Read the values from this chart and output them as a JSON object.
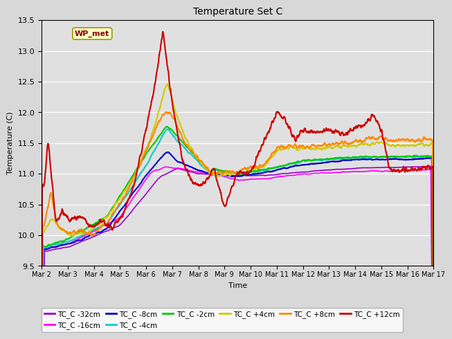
{
  "title": "Temperature Set C",
  "ylabel": "Temperature (C)",
  "xlabel": "Time",
  "ylim": [
    9.5,
    13.5
  ],
  "fig_bg_color": "#d8d8d8",
  "plot_bg_color": "#e0e0e0",
  "annotation_text": "WP_met",
  "annotation_box_color": "#ffffcc",
  "annotation_border_color": "#999900",
  "annotation_text_color": "#880000",
  "series": [
    {
      "label": "TC_C -32cm",
      "color": "#9900cc"
    },
    {
      "label": "TC_C -16cm",
      "color": "#ff00ff"
    },
    {
      "label": "TC_C -8cm",
      "color": "#0000cc"
    },
    {
      "label": "TC_C -4cm",
      "color": "#00cccc"
    },
    {
      "label": "TC_C -2cm",
      "color": "#00cc00"
    },
    {
      "label": "TC_C +4cm",
      "color": "#cccc00"
    },
    {
      "label": "TC_C +8cm",
      "color": "#ff8800"
    },
    {
      "label": "TC_C +12cm",
      "color": "#cc0000"
    }
  ],
  "x_tick_labels": [
    "Mar 2",
    "Mar 3",
    "Mar 4",
    "Mar 5",
    "Mar 6",
    "Mar 7",
    "Mar 8",
    "Mar 9",
    "Mar 10",
    "Mar 11",
    "Mar 12",
    "Mar 13",
    "Mar 14",
    "Mar 15",
    "Mar 16",
    "Mar 17"
  ],
  "x_tick_days": [
    2,
    3,
    4,
    5,
    6,
    7,
    8,
    9,
    10,
    11,
    12,
    13,
    14,
    15,
    16,
    17
  ],
  "start_day": 2,
  "end_day": 17,
  "yticks": [
    9.5,
    10.0,
    10.5,
    11.0,
    11.5,
    12.0,
    12.5,
    13.0,
    13.5
  ]
}
